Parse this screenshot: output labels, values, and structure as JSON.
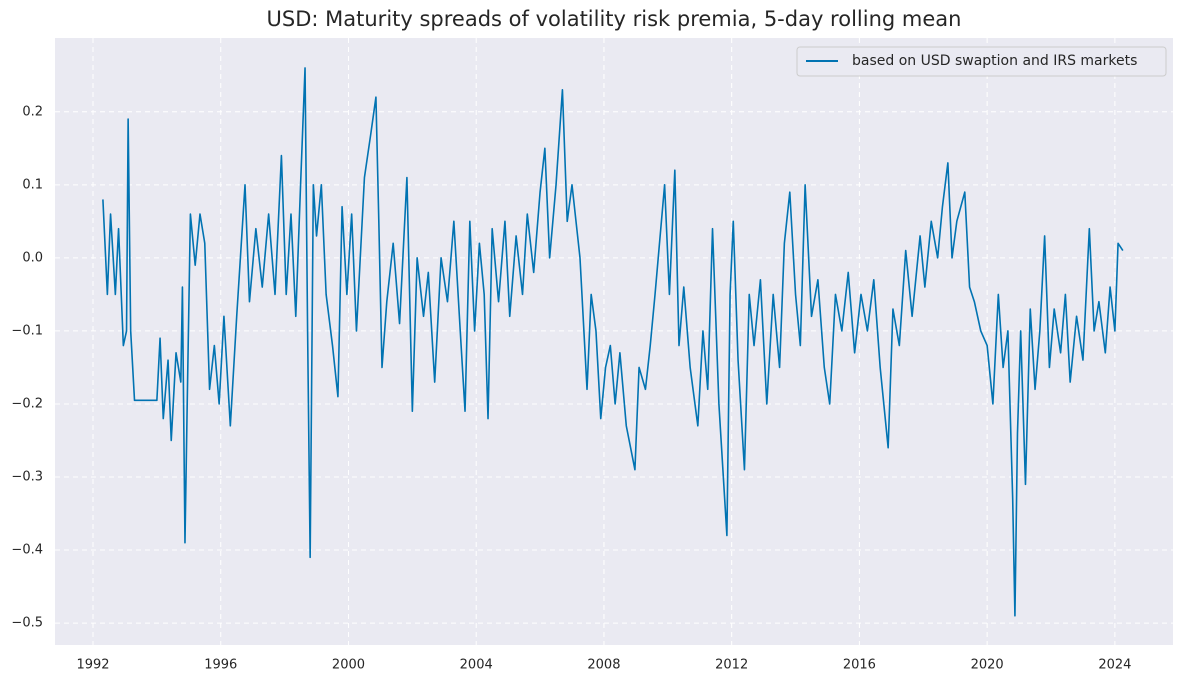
{
  "chart_data": {
    "type": "line",
    "title": "USD: Maturity spreads of volatility risk premia, 5-day rolling mean",
    "xlim": [
      1990.81,
      2025.82
    ],
    "ylim": [
      -0.53,
      0.301
    ],
    "xticks": [
      1992,
      1996,
      2000,
      2004,
      2008,
      2012,
      2016,
      2020,
      2024
    ],
    "yticks": [
      {
        "value": -0.5,
        "label": "−0.5"
      },
      {
        "value": -0.4,
        "label": "−0.4"
      },
      {
        "value": -0.3,
        "label": "−0.3"
      },
      {
        "value": -0.2,
        "label": "−0.2"
      },
      {
        "value": -0.1,
        "label": "−0.1"
      },
      {
        "value": 0,
        "label": "0.0"
      },
      0.1,
      0.2
    ],
    "grid": true,
    "legend": "upper right",
    "x": [
      1992.31,
      1992.45,
      1992.55,
      1992.7,
      1992.8,
      1992.95,
      1993.05,
      1993.1,
      1993.18,
      1993.3,
      1993.6,
      1994.0,
      1994.1,
      1994.2,
      1994.35,
      1994.45,
      1994.6,
      1994.75,
      1994.8,
      1994.88,
      1994.95,
      1995.05,
      1995.2,
      1995.35,
      1995.5,
      1995.65,
      1995.8,
      1995.95,
      1996.1,
      1996.3,
      1996.5,
      1996.76,
      1996.9,
      1997.1,
      1997.3,
      1997.5,
      1997.7,
      1997.9,
      1998.05,
      1998.2,
      1998.35,
      1998.5,
      1998.64,
      1998.72,
      1998.8,
      1998.9,
      1999.0,
      1999.15,
      1999.3,
      1999.5,
      1999.67,
      1999.8,
      1999.95,
      2000.1,
      2000.25,
      2000.5,
      2000.7,
      2000.86,
      2000.95,
      2001.05,
      2001.2,
      2001.4,
      2001.6,
      2001.83,
      2002.0,
      2002.15,
      2002.35,
      2002.5,
      2002.7,
      2002.9,
      2003.1,
      2003.3,
      2003.5,
      2003.65,
      2003.8,
      2003.95,
      2004.1,
      2004.25,
      2004.37,
      2004.5,
      2004.7,
      2004.9,
      2005.05,
      2005.25,
      2005.45,
      2005.6,
      2005.8,
      2006.0,
      2006.15,
      2006.3,
      2006.5,
      2006.7,
      2006.85,
      2007.0,
      2007.25,
      2007.47,
      2007.6,
      2007.75,
      2007.9,
      2008.05,
      2008.2,
      2008.35,
      2008.5,
      2008.7,
      2008.97,
      2009.1,
      2009.3,
      2009.45,
      2009.6,
      2009.9,
      2010.05,
      2010.22,
      2010.35,
      2010.5,
      2010.7,
      2010.94,
      2011.1,
      2011.25,
      2011.4,
      2011.6,
      2011.85,
      2011.95,
      2012.05,
      2012.2,
      2012.4,
      2012.55,
      2012.7,
      2012.9,
      2013.1,
      2013.3,
      2013.5,
      2013.65,
      2013.82,
      2014.0,
      2014.15,
      2014.3,
      2014.5,
      2014.7,
      2014.9,
      2015.07,
      2015.25,
      2015.45,
      2015.65,
      2015.85,
      2016.05,
      2016.25,
      2016.45,
      2016.65,
      2016.9,
      2017.05,
      2017.25,
      2017.45,
      2017.65,
      2017.9,
      2018.05,
      2018.25,
      2018.45,
      2018.6,
      2018.77,
      2018.9,
      2019.05,
      2019.3,
      2019.45,
      2019.6,
      2019.8,
      2020.0,
      2020.18,
      2020.35,
      2020.5,
      2020.65,
      2020.8,
      2020.87,
      2020.95,
      2021.05,
      2021.2,
      2021.35,
      2021.5,
      2021.65,
      2021.8,
      2021.95,
      2022.1,
      2022.3,
      2022.45,
      2022.6,
      2022.8,
      2023.0,
      2023.2,
      2023.35,
      2023.5,
      2023.7,
      2023.85,
      2024.0,
      2024.1,
      2024.25
    ],
    "series": [
      {
        "name": "based on USD swaption and IRS markets",
        "color": "#0173b2",
        "values": [
          0.08,
          -0.05,
          0.06,
          -0.05,
          0.04,
          -0.12,
          -0.1,
          0.19,
          -0.1,
          -0.195,
          -0.195,
          -0.195,
          -0.11,
          -0.22,
          -0.14,
          -0.25,
          -0.13,
          -0.17,
          -0.04,
          -0.39,
          -0.2,
          0.06,
          -0.01,
          0.06,
          0.02,
          -0.18,
          -0.12,
          -0.2,
          -0.08,
          -0.23,
          -0.08,
          0.1,
          -0.06,
          0.04,
          -0.04,
          0.06,
          -0.05,
          0.14,
          -0.05,
          0.06,
          -0.08,
          0.1,
          0.26,
          -0.1,
          -0.41,
          0.1,
          0.03,
          0.1,
          -0.05,
          -0.12,
          -0.19,
          0.07,
          -0.05,
          0.06,
          -0.1,
          0.11,
          0.17,
          0.22,
          0.05,
          -0.15,
          -0.06,
          0.02,
          -0.09,
          0.11,
          -0.21,
          0.0,
          -0.08,
          -0.02,
          -0.17,
          0.0,
          -0.06,
          0.05,
          -0.1,
          -0.21,
          0.05,
          -0.1,
          0.02,
          -0.05,
          -0.22,
          0.04,
          -0.06,
          0.05,
          -0.08,
          0.03,
          -0.05,
          0.06,
          -0.02,
          0.09,
          0.15,
          0.0,
          0.1,
          0.23,
          0.05,
          0.1,
          0.0,
          -0.18,
          -0.05,
          -0.1,
          -0.22,
          -0.15,
          -0.12,
          -0.2,
          -0.13,
          -0.23,
          -0.29,
          -0.15,
          -0.18,
          -0.12,
          -0.05,
          0.1,
          -0.05,
          0.12,
          -0.12,
          -0.04,
          -0.15,
          -0.23,
          -0.1,
          -0.18,
          0.04,
          -0.2,
          -0.38,
          -0.05,
          0.05,
          -0.14,
          -0.29,
          -0.05,
          -0.12,
          -0.03,
          -0.2,
          -0.05,
          -0.15,
          0.02,
          0.09,
          -0.05,
          -0.12,
          0.1,
          -0.08,
          -0.03,
          -0.15,
          -0.2,
          -0.05,
          -0.1,
          -0.02,
          -0.13,
          -0.05,
          -0.1,
          -0.03,
          -0.15,
          -0.26,
          -0.07,
          -0.12,
          0.01,
          -0.08,
          0.03,
          -0.04,
          0.05,
          0.0,
          0.07,
          0.13,
          0.0,
          0.05,
          0.09,
          -0.04,
          -0.06,
          -0.1,
          -0.12,
          -0.2,
          -0.05,
          -0.15,
          -0.1,
          -0.33,
          -0.49,
          -0.24,
          -0.1,
          -0.31,
          -0.07,
          -0.18,
          -0.1,
          0.03,
          -0.15,
          -0.07,
          -0.13,
          -0.05,
          -0.17,
          -0.08,
          -0.14,
          0.04,
          -0.1,
          -0.06,
          -0.13,
          -0.04,
          -0.1,
          0.02,
          0.01
        ]
      }
    ]
  }
}
